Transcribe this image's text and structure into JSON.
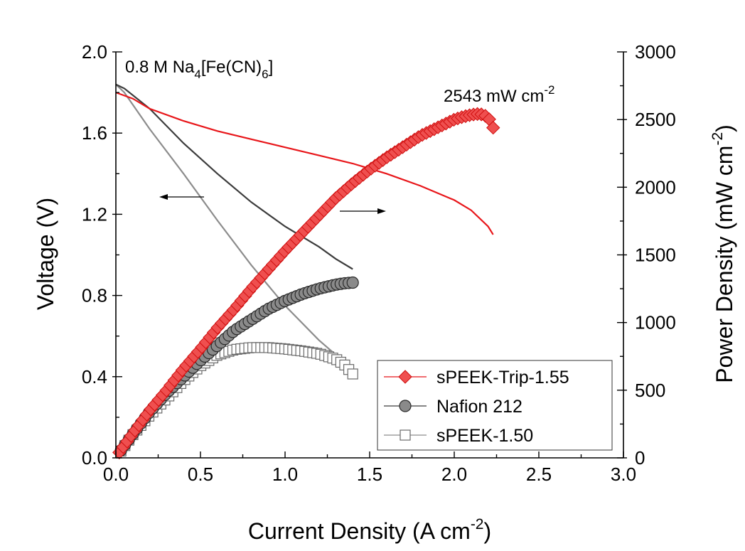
{
  "chart_data": {
    "type": "line",
    "xlabel": "Current Density (A cm",
    "xlabel_sup": "-2",
    "xlabel_end": ")",
    "ylabel_left": "Voltage (V)",
    "ylabel_right": "Power Density (mW cm",
    "ylabel_right_sup": "-2",
    "ylabel_right_end": ")",
    "xlim": [
      0,
      3.0
    ],
    "ylim_left": [
      0,
      2.0
    ],
    "ylim_right": [
      0,
      3000
    ],
    "x_ticks": [
      "0.0",
      "0.5",
      "1.0",
      "1.5",
      "2.0",
      "2.5",
      "3.0"
    ],
    "y_left_ticks": [
      "0.0",
      "0.4",
      "0.8",
      "1.2",
      "1.6",
      "2.0"
    ],
    "y_right_ticks": [
      "0",
      "500",
      "1000",
      "1500",
      "2000",
      "2500",
      "3000"
    ],
    "annotation_electrolyte": {
      "main": "0.8 M Na",
      "s1": "4",
      "mid": "[Fe(CN)",
      "s2": "6",
      "end": "]"
    },
    "annotation_peak": {
      "main": "2543 mW cm",
      "sup": "-2"
    },
    "legend_position": "bottom-right",
    "series": [
      {
        "name": "sPEEK-Trip-1.55",
        "color": "#e8161a",
        "marker": "diamond",
        "polarization": {
          "x": [
            0,
            0.1,
            0.2,
            0.4,
            0.6,
            0.8,
            1.0,
            1.2,
            1.4,
            1.6,
            1.8,
            2.0,
            2.1,
            2.2,
            2.23
          ],
          "y": [
            1.8,
            1.77,
            1.72,
            1.66,
            1.61,
            1.57,
            1.53,
            1.49,
            1.45,
            1.4,
            1.34,
            1.27,
            1.22,
            1.14,
            1.1
          ]
        },
        "power": {
          "x": [
            0.02,
            0.1,
            0.2,
            0.3,
            0.4,
            0.5,
            0.6,
            0.7,
            0.8,
            0.9,
            1.0,
            1.1,
            1.2,
            1.3,
            1.4,
            1.5,
            1.6,
            1.7,
            1.8,
            1.9,
            2.0,
            2.05,
            2.1,
            2.15,
            2.2,
            2.23
          ],
          "y": [
            40,
            180,
            350,
            500,
            660,
            805,
            960,
            1100,
            1250,
            1390,
            1530,
            1660,
            1790,
            1920,
            2030,
            2130,
            2220,
            2300,
            2380,
            2440,
            2500,
            2520,
            2535,
            2543,
            2520,
            2440
          ]
        }
      },
      {
        "name": "Nafion 212",
        "color": "#3c3c3c",
        "marker": "circle",
        "polarization": {
          "x": [
            0,
            0.05,
            0.2,
            0.4,
            0.6,
            0.8,
            1.0,
            1.1,
            1.2,
            1.3,
            1.4
          ],
          "y": [
            1.84,
            1.82,
            1.72,
            1.55,
            1.4,
            1.26,
            1.14,
            1.09,
            1.04,
            0.98,
            0.93
          ]
        },
        "power": {
          "x": [
            0.03,
            0.1,
            0.2,
            0.3,
            0.4,
            0.5,
            0.6,
            0.7,
            0.8,
            0.9,
            1.0,
            1.1,
            1.2,
            1.3,
            1.35,
            1.4
          ],
          "y": [
            55,
            175,
            340,
            480,
            600,
            720,
            830,
            940,
            1020,
            1100,
            1160,
            1210,
            1250,
            1280,
            1290,
            1295
          ]
        }
      },
      {
        "name": "sPEEK-1.50",
        "color": "#8c8c8c",
        "marker": "square",
        "polarization": {
          "x": [
            0,
            0.05,
            0.2,
            0.4,
            0.6,
            0.8,
            1.0,
            1.2,
            1.38
          ],
          "y": [
            1.84,
            1.8,
            1.62,
            1.4,
            1.17,
            0.95,
            0.75,
            0.58,
            0.45
          ]
        },
        "power": {
          "x": [
            0.03,
            0.1,
            0.2,
            0.3,
            0.4,
            0.5,
            0.6,
            0.7,
            0.8,
            0.9,
            1.0,
            1.1,
            1.2,
            1.3,
            1.35,
            1.4
          ],
          "y": [
            50,
            170,
            315,
            440,
            570,
            680,
            760,
            800,
            815,
            815,
            805,
            790,
            770,
            730,
            690,
            620
          ]
        }
      }
    ]
  }
}
